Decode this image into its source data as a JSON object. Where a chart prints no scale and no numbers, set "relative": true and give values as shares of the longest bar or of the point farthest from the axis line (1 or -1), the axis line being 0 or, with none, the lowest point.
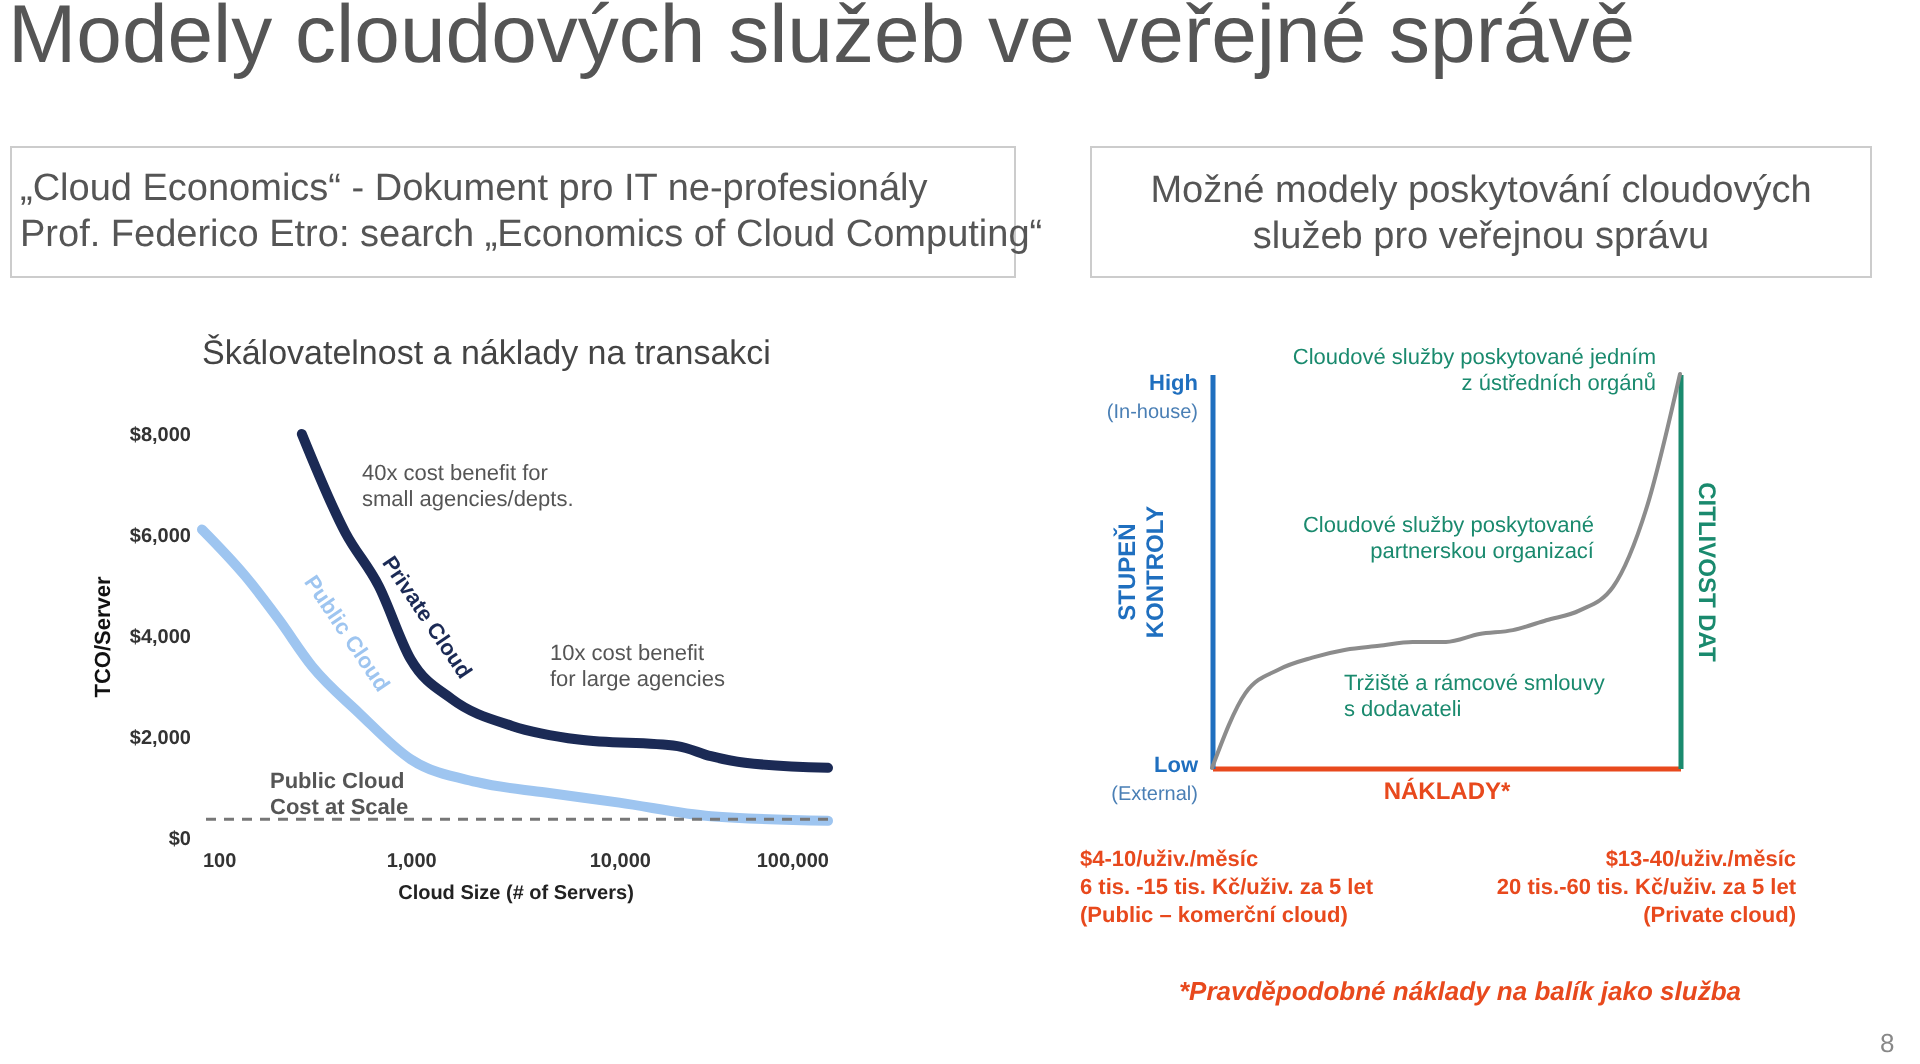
{
  "chart_data": [
    {
      "type": "other",
      "title": "Modely cloudových služeb ve veřejné správě",
      "annotations": [
        "„Cloud Economics“ - Dokument pro IT ne-profesionály",
        "Prof. Federico Etro: search „Economics of Cloud Computing“",
        "Možné modely poskytování cloudových\nslužeb pro veřejnou správu",
        "*Pravděpodobné náklady na balík jako služba",
        "8"
      ]
    },
    {
      "type": "line",
      "title": "Škálovatelnost a náklady na transakci",
      "xlabel": "Cloud Size (# of Servers)",
      "ylabel": "TCO/Server",
      "log": "x",
      "xlim": [
        100,
        100000
      ],
      "xticks": [
        100,
        {
          "value": 1000,
          "label": "1,000"
        },
        {
          "value": 10000,
          "label": "10,000"
        },
        {
          "value": 100000,
          "label": "100,000"
        }
      ],
      "ylim": [
        0,
        8000
      ],
      "yticks": [
        {
          "value": 0,
          "label": "$0"
        },
        {
          "value": 2000,
          "label": "$2,000"
        },
        {
          "value": 4000,
          "label": "$4,000"
        },
        {
          "value": 6000,
          "label": "$6,000"
        },
        {
          "value": 8000,
          "label": "$8,000"
        }
      ],
      "series": [
        {
          "name": "Public Cloud",
          "color": "#9ec5f0",
          "x": [
            100,
            161,
            233,
            337,
            564,
            1000,
            2110,
            4430,
            10000,
            27500,
            100000
          ],
          "values": [
            6110,
            5190,
            4330,
            3400,
            2480,
            1560,
            1100,
            900,
            700,
            430,
            340
          ]
        },
        {
          "name": "Private Cloud",
          "color": "#1b2a55",
          "x": [
            301,
            486,
            703,
            1000,
            1578,
            3060,
            6380,
            19000,
            27500,
            40000,
            100000
          ],
          "values": [
            8000,
            6050,
            4990,
            3540,
            2750,
            2220,
            1950,
            1820,
            1620,
            1490,
            1390
          ]
        }
      ],
      "ref_lines": [
        {
          "axis": "y",
          "value": 370,
          "color": "#777777",
          "line_style": "dashed"
        }
      ],
      "annotations": [
        "40x cost benefit for\nsmall agencies/depts.",
        "10x cost benefit\nfor large agencies",
        "Public Cloud\nCost at Scale"
      ]
    },
    {
      "type": "line",
      "relative": true,
      "categories": [
        null,
        null,
        null,
        null,
        null,
        null,
        null,
        null,
        null,
        null,
        null,
        null,
        null,
        null,
        null
      ],
      "xlabel": "NÁKLADY*",
      "ylabel": "STUPEŇ\nKONTROLY",
      "y2label": "CITLIVOST DAT",
      "series": [
        {
          "color": "#8c8c8c",
          "values": [
            0,
            0.19,
            0.25,
            0.28,
            0.3,
            0.31,
            0.32,
            0.32,
            0.34,
            0.35,
            0.375,
            0.4,
            0.46,
            0.66,
            1
          ]
        }
      ],
      "annotations": [
        "Cloudové služby poskytované jedním\nz ústředních orgánů",
        "Cloudové služby poskytované\npartnerskou organizací",
        "Tržiště a rámcové smlouvy\ns dodavateli",
        "High",
        "(In-house)",
        "Low",
        "(External)",
        "$4-10/uživ./měsíc",
        "6 tis. -15 tis. Kč/uživ. za 5 let",
        "(Public – komerční cloud)",
        "$13-40/uživ./měsíc",
        "20 tis.-60 tis. Kč/uživ. za 5 let",
        "(Private cloud)"
      ]
    }
  ]
}
